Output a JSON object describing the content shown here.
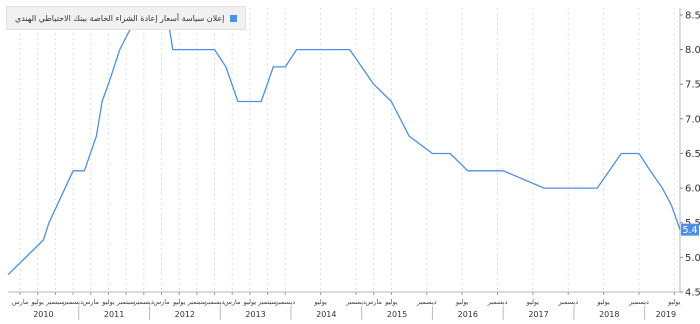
{
  "chart_data": {
    "type": "line",
    "title": "",
    "xlabel": "",
    "ylabel": "",
    "xlim": [
      2010.0,
      2019.5
    ],
    "ylim": [
      4.5,
      8.6
    ],
    "y_ticks": [
      4.5,
      5.0,
      5.5,
      6.0,
      6.5,
      7.0,
      7.5,
      8.0,
      8.5
    ],
    "y_tick_labels": [
      "4.5",
      "5.0",
      "5.5",
      "6.0",
      "6.5",
      "7.0",
      "7.5",
      "8.0",
      "8.5"
    ],
    "y_axis_side": "right",
    "grid": "vertical",
    "legend_position": "top-left",
    "last_value_label": "5.4",
    "series": [
      {
        "name": "إعلان سياسة أسعار إعادة الشراء الخاصة ببنك الاحتياطي الهندي",
        "color": "#4f8fe3",
        "x": [
          2010.0,
          2010.25,
          2010.5,
          2010.58,
          2010.92,
          2011.08,
          2011.25,
          2011.33,
          2011.42,
          2011.58,
          2011.83,
          2012.25,
          2012.33,
          2012.92,
          2013.08,
          2013.25,
          2013.58,
          2013.75,
          2013.92,
          2014.08,
          2014.83,
          2015.0,
          2015.17,
          2015.42,
          2015.67,
          2016.0,
          2016.25,
          2016.5,
          2016.83,
          2017.0,
          2017.58,
          2018.33,
          2018.67,
          2018.92,
          2019.08,
          2019.25,
          2019.38,
          2019.5
        ],
        "y": [
          4.75,
          5.0,
          5.25,
          5.5,
          6.25,
          6.25,
          6.75,
          7.25,
          7.5,
          8.0,
          8.5,
          8.5,
          8.0,
          8.0,
          7.75,
          7.25,
          7.25,
          7.75,
          7.75,
          8.0,
          8.0,
          7.75,
          7.5,
          7.25,
          6.75,
          6.5,
          6.5,
          6.25,
          6.25,
          6.25,
          6.0,
          6.0,
          6.5,
          6.5,
          6.25,
          6.0,
          5.75,
          5.4
        ]
      }
    ],
    "x_axis": {
      "month_labels": [
        {
          "x": 2010.17,
          "label": "مارس"
        },
        {
          "x": 2010.42,
          "label": "يوليو"
        },
        {
          "x": 2010.67,
          "label": "سبتمبر"
        },
        {
          "x": 2010.92,
          "label": "ديسمبر"
        },
        {
          "x": 2011.17,
          "label": "مارس"
        },
        {
          "x": 2011.42,
          "label": "يوليو"
        },
        {
          "x": 2011.67,
          "label": "سبتمبر"
        },
        {
          "x": 2011.92,
          "label": "ديسمبر"
        },
        {
          "x": 2012.17,
          "label": "مارس"
        },
        {
          "x": 2012.42,
          "label": "يوليو"
        },
        {
          "x": 2012.67,
          "label": "سبتمبر"
        },
        {
          "x": 2012.92,
          "label": "ديسمبر"
        },
        {
          "x": 2013.17,
          "label": "مارس"
        },
        {
          "x": 2013.42,
          "label": "يوليو"
        },
        {
          "x": 2013.67,
          "label": "سبتمبر"
        },
        {
          "x": 2013.92,
          "label": "ديسمبر"
        },
        {
          "x": 2014.42,
          "label": "يوليو"
        },
        {
          "x": 2014.92,
          "label": "ديسمبر"
        },
        {
          "x": 2015.17,
          "label": "مارس"
        },
        {
          "x": 2015.42,
          "label": "يوليو"
        },
        {
          "x": 2015.92,
          "label": "ديسمبر"
        },
        {
          "x": 2016.42,
          "label": "يوليو"
        },
        {
          "x": 2016.92,
          "label": "ديسمبر"
        },
        {
          "x": 2017.42,
          "label": "يوليو"
        },
        {
          "x": 2017.92,
          "label": "ديسمبر"
        },
        {
          "x": 2018.42,
          "label": "يوليو"
        },
        {
          "x": 2018.92,
          "label": "ديسمبر"
        },
        {
          "x": 2019.42,
          "label": "يوليو"
        }
      ],
      "year_labels": [
        {
          "x": 2010.5,
          "label": "2010"
        },
        {
          "x": 2011.5,
          "label": "2011"
        },
        {
          "x": 2012.5,
          "label": "2012"
        },
        {
          "x": 2013.5,
          "label": "2013"
        },
        {
          "x": 2014.5,
          "label": "2014"
        },
        {
          "x": 2015.5,
          "label": "2015"
        },
        {
          "x": 2016.5,
          "label": "2016"
        },
        {
          "x": 2017.5,
          "label": "2017"
        },
        {
          "x": 2018.5,
          "label": "2018"
        },
        {
          "x": 2019.3,
          "label": "2019"
        }
      ]
    }
  }
}
